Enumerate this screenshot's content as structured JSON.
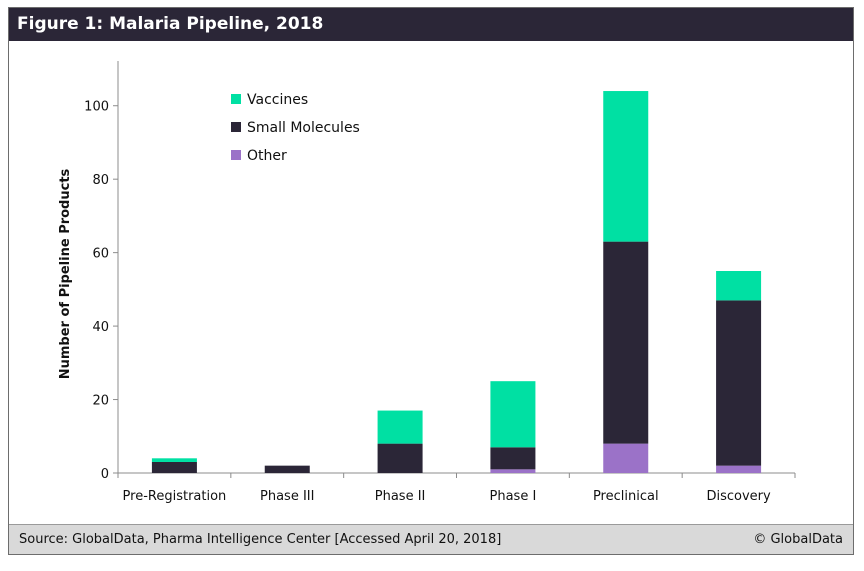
{
  "figure_title": "Figure 1: Malaria Pipeline, 2018",
  "footer": {
    "source": "Source: GlobalData, Pharma Intelligence Center [Accessed April 20, 2018]",
    "copyright": "© GlobalData"
  },
  "colors": {
    "title_bar": "#2b2637",
    "vaccines": "#00e0a3",
    "small_molecules": "#2b2637",
    "other": "#9b72c8",
    "footer_bar": "#d9d9d9"
  },
  "chart_data": {
    "type": "bar",
    "stacked": true,
    "title": "",
    "xlabel": "",
    "ylabel": "Number of Pipeline Products",
    "categories": [
      "Pre-Registration",
      "Phase III",
      "Phase II",
      "Phase I",
      "Preclinical",
      "Discovery"
    ],
    "series": [
      {
        "name": "Other",
        "color": "#9b72c8",
        "values": [
          0,
          0,
          0,
          1,
          8,
          2
        ]
      },
      {
        "name": "Small Molecules",
        "color": "#2b2637",
        "values": [
          3,
          2,
          8,
          6,
          55,
          45
        ]
      },
      {
        "name": "Vaccines",
        "color": "#00e0a3",
        "values": [
          1,
          0,
          9,
          18,
          41,
          8
        ]
      }
    ],
    "ylim": [
      0,
      110
    ],
    "yticks": [
      0,
      20,
      40,
      60,
      80,
      100
    ],
    "legend": {
      "placement": "top-left",
      "order": [
        "Vaccines",
        "Small Molecules",
        "Other"
      ]
    },
    "grid": false
  }
}
